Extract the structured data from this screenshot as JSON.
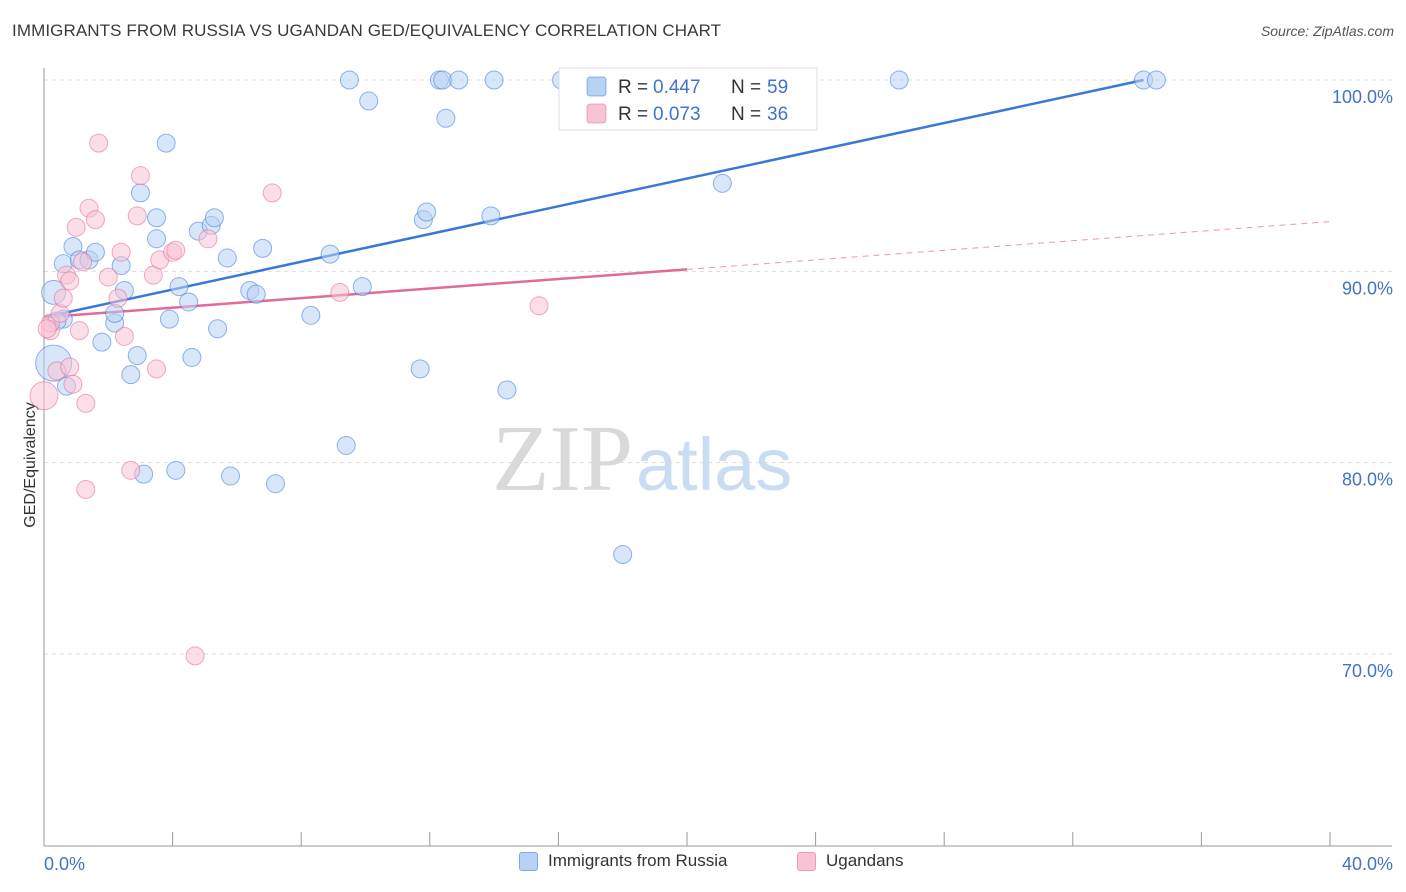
{
  "title": "IMMIGRANTS FROM RUSSIA VS UGANDAN GED/EQUIVALENCY CORRELATION CHART",
  "source": "Source: ZipAtlas.com",
  "watermark": {
    "part1": "ZIP",
    "part2": "atlas"
  },
  "colors": {
    "blue": "#3a78d8",
    "blue_fill": "#b8d2f4",
    "pink": "#e06a98",
    "pink_fill": "#f7c3d5",
    "axis_text": "#3f74c9",
    "grid": "#dddddd"
  },
  "legend_top": [
    {
      "r_label": "R =",
      "r_value": "0.447",
      "n_label": "N =",
      "n_value": "59"
    },
    {
      "r_label": "R =",
      "r_value": "0.073",
      "n_label": "N =",
      "n_value": "36"
    }
  ],
  "chart_data": {
    "type": "scatter",
    "title": "IMMIGRANTS FROM RUSSIA VS UGANDAN GED/EQUIVALENCY CORRELATION CHART",
    "xlabel": "",
    "ylabel": "GED/Equivalency",
    "xlim": [
      0,
      40
    ],
    "ylim": [
      61,
      101.5
    ],
    "x_tick_labels": [
      "0.0%",
      "40.0%"
    ],
    "y_ticks": [
      100,
      90,
      80,
      70
    ],
    "y_tick_labels": [
      "100.0%",
      "90.0%",
      "80.0%",
      "70.0%"
    ],
    "grid": true,
    "legend_position": "top-center",
    "series": [
      {
        "name": "Immigrants from Russia",
        "color": "#3a78d8",
        "r": 0.447,
        "n": 59,
        "trend": {
          "x": [
            0,
            34.2
          ],
          "y": [
            87.6,
            100.0
          ],
          "style": "solid"
        },
        "points": [
          [
            0.3,
            85.2
          ],
          [
            0.3,
            88.9
          ],
          [
            0.6,
            87.5
          ],
          [
            0.6,
            90.4
          ],
          [
            0.7,
            84.0
          ],
          [
            0.9,
            91.3
          ],
          [
            1.1,
            90.6
          ],
          [
            1.4,
            90.6
          ],
          [
            1.6,
            91.0
          ],
          [
            1.8,
            86.3
          ],
          [
            2.2,
            87.3
          ],
          [
            2.2,
            87.8
          ],
          [
            2.4,
            90.3
          ],
          [
            2.5,
            89.0
          ],
          [
            2.7,
            84.6
          ],
          [
            2.9,
            85.6
          ],
          [
            3.0,
            94.1
          ],
          [
            3.1,
            79.4
          ],
          [
            3.5,
            91.7
          ],
          [
            3.5,
            92.8
          ],
          [
            3.8,
            96.7
          ],
          [
            3.9,
            87.5
          ],
          [
            4.1,
            79.6
          ],
          [
            4.2,
            89.2
          ],
          [
            4.5,
            88.4
          ],
          [
            4.6,
            85.5
          ],
          [
            4.8,
            92.1
          ],
          [
            5.2,
            92.4
          ],
          [
            5.3,
            92.8
          ],
          [
            5.4,
            87.0
          ],
          [
            5.7,
            90.7
          ],
          [
            5.8,
            79.3
          ],
          [
            6.4,
            89.0
          ],
          [
            6.6,
            88.8
          ],
          [
            6.8,
            91.2
          ],
          [
            7.2,
            78.9
          ],
          [
            8.3,
            87.7
          ],
          [
            8.9,
            90.9
          ],
          [
            9.4,
            80.9
          ],
          [
            9.5,
            100.0
          ],
          [
            9.9,
            89.2
          ],
          [
            10.1,
            98.9
          ],
          [
            11.7,
            84.9
          ],
          [
            11.8,
            92.7
          ],
          [
            11.9,
            93.1
          ],
          [
            12.3,
            100.0
          ],
          [
            12.4,
            100.0
          ],
          [
            12.5,
            98.0
          ],
          [
            12.9,
            100.0
          ],
          [
            13.9,
            92.9
          ],
          [
            14.0,
            100.0
          ],
          [
            14.4,
            83.8
          ],
          [
            16.1,
            100.0
          ],
          [
            18.0,
            75.2
          ],
          [
            21.1,
            94.6
          ],
          [
            26.6,
            100.0
          ],
          [
            34.2,
            100.0
          ],
          [
            34.6,
            100.0
          ],
          [
            0.4,
            87.4
          ]
        ]
      },
      {
        "name": "Ugandans",
        "color": "#e06a98",
        "r": 0.073,
        "n": 36,
        "trend": {
          "x": [
            0,
            20.0
          ],
          "y": [
            87.6,
            90.1
          ],
          "style": "solid",
          "dashed_extension": {
            "x": [
              20.0,
              40.0
            ],
            "y": [
              90.1,
              92.6
            ]
          }
        },
        "points": [
          [
            0.0,
            83.5
          ],
          [
            0.2,
            86.9
          ],
          [
            0.2,
            87.3
          ],
          [
            0.4,
            84.8
          ],
          [
            0.5,
            87.8
          ],
          [
            0.6,
            88.6
          ],
          [
            0.7,
            89.8
          ],
          [
            0.8,
            85.0
          ],
          [
            0.8,
            89.5
          ],
          [
            0.9,
            84.1
          ],
          [
            1.0,
            92.3
          ],
          [
            1.1,
            86.9
          ],
          [
            1.2,
            90.5
          ],
          [
            1.3,
            83.1
          ],
          [
            1.3,
            78.6
          ],
          [
            1.4,
            93.3
          ],
          [
            1.6,
            92.7
          ],
          [
            1.7,
            96.7
          ],
          [
            2.0,
            89.7
          ],
          [
            2.3,
            88.6
          ],
          [
            2.4,
            91.0
          ],
          [
            2.5,
            86.6
          ],
          [
            2.7,
            79.6
          ],
          [
            2.9,
            92.9
          ],
          [
            3.0,
            95.0
          ],
          [
            3.4,
            89.8
          ],
          [
            3.5,
            84.9
          ],
          [
            3.6,
            90.6
          ],
          [
            4.0,
            91.0
          ],
          [
            4.1,
            91.1
          ],
          [
            4.7,
            69.9
          ],
          [
            5.1,
            91.7
          ],
          [
            7.1,
            94.1
          ],
          [
            9.2,
            88.9
          ],
          [
            15.4,
            88.2
          ],
          [
            0.1,
            87.0
          ]
        ]
      }
    ]
  }
}
